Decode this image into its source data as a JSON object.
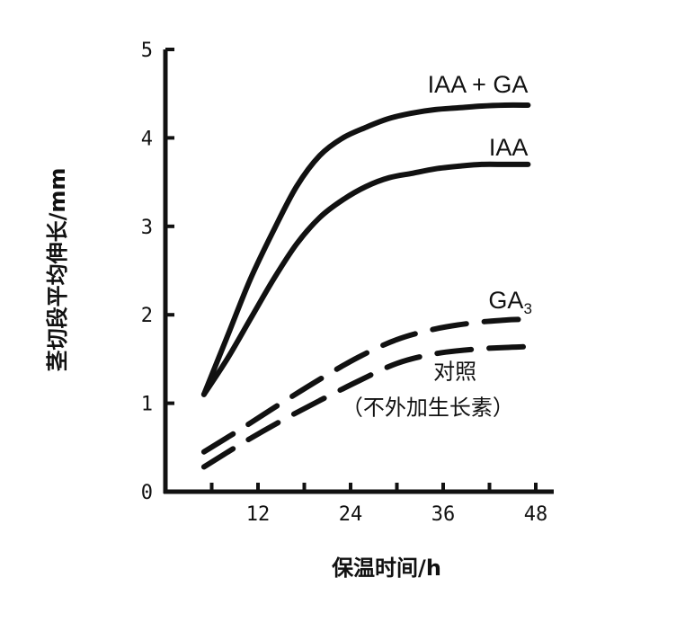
{
  "chart_data": {
    "type": "line",
    "xlabel": "保温时间/h",
    "ylabel": "茎切段平均伸长/mm",
    "xlim": [
      0,
      48
    ],
    "ylim": [
      0,
      5
    ],
    "xticks": [
      12,
      24,
      36,
      48
    ],
    "yticks": [
      0,
      1,
      2,
      3,
      4,
      5
    ],
    "grid": false,
    "series": [
      {
        "name": "IAA + GA",
        "style": "solid",
        "x": [
          5,
          8,
          11,
          14,
          17,
          20,
          23,
          26,
          29,
          32,
          35,
          38,
          41,
          44,
          47
        ],
        "y": [
          1.1,
          1.75,
          2.4,
          2.95,
          3.45,
          3.8,
          4.0,
          4.12,
          4.22,
          4.28,
          4.32,
          4.34,
          4.36,
          4.37,
          4.37
        ]
      },
      {
        "name": "IAA",
        "style": "solid",
        "x": [
          5,
          8,
          11,
          14,
          17,
          20,
          23,
          26,
          29,
          32,
          35,
          38,
          41,
          44,
          47
        ],
        "y": [
          1.1,
          1.5,
          1.95,
          2.4,
          2.8,
          3.1,
          3.3,
          3.45,
          3.55,
          3.6,
          3.65,
          3.68,
          3.7,
          3.7,
          3.7
        ]
      },
      {
        "name": "GA3",
        "name_main": "GA",
        "name_sub": "3",
        "style": "dashed",
        "x": [
          5,
          10,
          15,
          20,
          25,
          30,
          35,
          40,
          44,
          47
        ],
        "y": [
          0.45,
          0.72,
          1.0,
          1.27,
          1.52,
          1.72,
          1.84,
          1.91,
          1.94,
          1.95
        ]
      },
      {
        "name": "对照",
        "name_sub_label": "（不外加生长素）",
        "style": "dashed",
        "x": [
          5,
          10,
          15,
          20,
          25,
          30,
          35,
          40,
          44,
          47
        ],
        "y": [
          0.28,
          0.55,
          0.8,
          1.03,
          1.25,
          1.45,
          1.56,
          1.61,
          1.63,
          1.64
        ]
      }
    ]
  }
}
